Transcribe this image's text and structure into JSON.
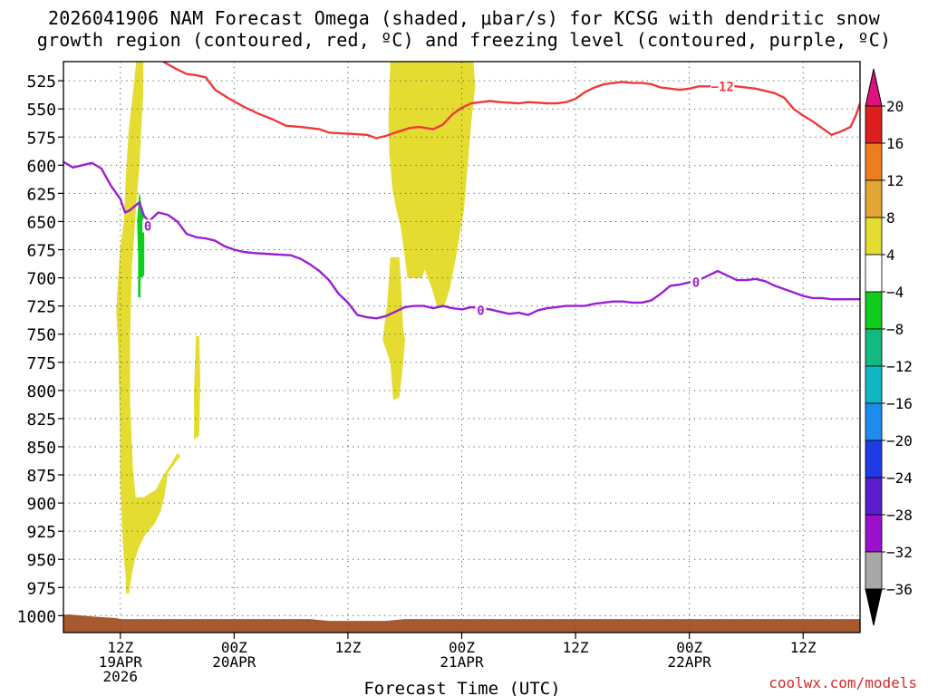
{
  "title": {
    "line1": "2026041906 NAM Forecast Omega (shaded, μbar/s) for KCSG with dendritic snow",
    "line2": "growth region (contoured, red, ºC) and freezing level (contoured, purple, ºC)"
  },
  "watermark": "coolwx.com/models",
  "chart_data": {
    "type": "contour-timeheight",
    "title": "2026041906 NAM Forecast Omega (shaded, μbar/s) for KCSG with dendritic snow growth region (contoured, red, ºC) and freezing level (contoured, purple, ºC)",
    "xlabel": "Forecast Time (UTC)",
    "ylabel": "",
    "x_range_hours": [
      0,
      84
    ],
    "y_range_mb": [
      508,
      1015
    ],
    "y_ticks": [
      525,
      550,
      575,
      600,
      625,
      650,
      675,
      700,
      725,
      750,
      775,
      800,
      825,
      850,
      875,
      900,
      925,
      950,
      975,
      1000
    ],
    "x_ticks": [
      {
        "hour": 6,
        "lines": [
          "12Z",
          "19APR",
          "2026"
        ]
      },
      {
        "hour": 18,
        "lines": [
          "00Z",
          "20APR"
        ]
      },
      {
        "hour": 30,
        "lines": [
          "12Z",
          ""
        ]
      },
      {
        "hour": 42,
        "lines": [
          "00Z",
          "21APR"
        ]
      },
      {
        "hour": 54,
        "lines": [
          "12Z",
          ""
        ]
      },
      {
        "hour": 66,
        "lines": [
          "00Z",
          "22APR"
        ]
      },
      {
        "hour": 78,
        "lines": [
          "12Z",
          ""
        ]
      }
    ],
    "colorbar": {
      "labels": [
        "20",
        "16",
        "12",
        "8",
        "4",
        "−4",
        "−8",
        "−12",
        "−16",
        "−20",
        "−24",
        "−28",
        "−32",
        "−36"
      ],
      "colors": [
        "#dc1e1e",
        "#ee7d22",
        "#e2a634",
        "#e5dc32",
        "#ffffff",
        "#0fcd1a",
        "#13b982",
        "#11b5c6",
        "#1e8cee",
        "#1e3ce6",
        "#5a1ecc",
        "#9a10cc",
        "#a8a8a8"
      ],
      "top_arrow_color": "#e0107e",
      "bottom_arrow_color": "#000000"
    },
    "dgz_contour": {
      "color": "#ee3a3a",
      "label": "−12",
      "label_point": [
        69.5,
        530
      ],
      "points": [
        [
          10.5,
          508
        ],
        [
          12,
          515
        ],
        [
          13,
          519
        ],
        [
          14,
          520
        ],
        [
          14.5,
          521
        ],
        [
          15,
          522
        ],
        [
          16,
          533
        ],
        [
          17.5,
          541
        ],
        [
          19,
          548
        ],
        [
          20.5,
          554
        ],
        [
          22,
          559
        ],
        [
          23.5,
          565
        ],
        [
          25,
          566
        ],
        [
          27,
          568
        ],
        [
          28,
          571
        ],
        [
          30,
          572
        ],
        [
          32,
          573
        ],
        [
          33,
          576
        ],
        [
          34,
          574
        ],
        [
          35,
          571
        ],
        [
          36.5,
          567
        ],
        [
          37.5,
          566
        ],
        [
          39,
          568
        ],
        [
          40,
          564
        ],
        [
          41,
          555
        ],
        [
          42,
          549
        ],
        [
          43,
          545
        ],
        [
          44,
          544
        ],
        [
          45,
          543
        ],
        [
          46,
          544
        ],
        [
          48,
          545
        ],
        [
          49,
          544
        ],
        [
          51,
          545
        ],
        [
          52,
          545
        ],
        [
          53,
          544
        ],
        [
          54,
          541
        ],
        [
          55,
          535
        ],
        [
          56,
          531
        ],
        [
          57,
          528
        ],
        [
          58,
          527
        ],
        [
          59,
          526
        ],
        [
          60,
          527
        ],
        [
          61,
          527
        ],
        [
          62,
          528
        ],
        [
          63,
          531
        ],
        [
          64,
          532
        ],
        [
          65,
          533
        ],
        [
          66,
          532
        ],
        [
          67,
          530
        ],
        [
          68,
          530
        ],
        [
          70,
          529
        ],
        [
          71,
          530
        ],
        [
          72,
          531
        ],
        [
          73,
          532
        ],
        [
          74,
          534
        ],
        [
          75,
          536
        ],
        [
          76,
          540
        ],
        [
          77,
          550
        ],
        [
          78,
          556
        ],
        [
          79,
          561
        ],
        [
          80,
          567
        ],
        [
          81,
          573
        ],
        [
          82,
          570
        ],
        [
          83,
          566
        ],
        [
          83.6,
          555
        ],
        [
          84,
          545
        ]
      ]
    },
    "freezing_contour": {
      "color": "#9b1fd1",
      "label": "0",
      "label_points": [
        [
          8.9,
          654
        ],
        [
          44,
          729
        ],
        [
          66.7,
          704
        ]
      ],
      "points": [
        [
          0,
          597
        ],
        [
          1,
          602
        ],
        [
          2,
          600
        ],
        [
          3,
          598
        ],
        [
          4,
          603
        ],
        [
          5,
          618
        ],
        [
          6,
          630
        ],
        [
          6.5,
          642
        ],
        [
          7,
          640
        ],
        [
          8,
          633
        ],
        [
          8.5,
          645
        ],
        [
          9,
          650
        ],
        [
          10,
          642
        ],
        [
          11,
          644
        ],
        [
          12,
          650
        ],
        [
          13,
          661
        ],
        [
          14,
          664
        ],
        [
          15,
          665
        ],
        [
          16,
          667
        ],
        [
          17,
          672
        ],
        [
          18,
          675
        ],
        [
          19,
          677
        ],
        [
          20,
          678
        ],
        [
          22,
          679
        ],
        [
          24,
          680
        ],
        [
          25,
          683
        ],
        [
          26,
          688
        ],
        [
          27,
          694
        ],
        [
          28,
          702
        ],
        [
          29,
          714
        ],
        [
          30,
          722
        ],
        [
          31,
          733
        ],
        [
          32,
          735
        ],
        [
          33,
          736
        ],
        [
          34,
          734
        ],
        [
          35,
          730
        ],
        [
          36,
          726
        ],
        [
          37,
          725
        ],
        [
          38,
          725
        ],
        [
          39,
          727
        ],
        [
          40,
          725
        ],
        [
          41,
          727
        ],
        [
          42,
          728
        ],
        [
          43,
          726
        ],
        [
          44,
          727
        ],
        [
          45,
          728
        ],
        [
          46,
          730
        ],
        [
          47,
          732
        ],
        [
          48,
          731
        ],
        [
          49,
          733
        ],
        [
          50,
          729
        ],
        [
          51,
          727
        ],
        [
          52,
          726
        ],
        [
          53,
          725
        ],
        [
          54,
          725
        ],
        [
          55,
          725
        ],
        [
          56,
          723
        ],
        [
          57,
          722
        ],
        [
          58,
          721
        ],
        [
          59,
          721
        ],
        [
          60,
          722
        ],
        [
          61,
          722
        ],
        [
          62,
          720
        ],
        [
          63,
          714
        ],
        [
          64,
          707
        ],
        [
          65,
          706
        ],
        [
          66,
          704
        ],
        [
          67,
          702
        ],
        [
          68,
          698
        ],
        [
          69,
          694
        ],
        [
          70,
          698
        ],
        [
          71,
          702
        ],
        [
          72,
          702
        ],
        [
          73,
          701
        ],
        [
          74,
          703
        ],
        [
          75,
          707
        ],
        [
          76,
          710
        ],
        [
          77,
          713
        ],
        [
          78,
          716
        ],
        [
          79,
          718
        ],
        [
          80,
          718
        ],
        [
          81,
          719
        ],
        [
          82,
          719
        ],
        [
          84,
          719
        ]
      ]
    },
    "omega_regions": [
      {
        "name": "lift-band-west",
        "color": "#e5dc32",
        "points": [
          [
            7.7,
            508
          ],
          [
            8.4,
            508
          ],
          [
            8.4,
            535
          ],
          [
            8.2,
            565
          ],
          [
            8.0,
            600
          ],
          [
            7.6,
            640
          ],
          [
            7.2,
            690
          ],
          [
            7.0,
            750
          ],
          [
            7.0,
            810
          ],
          [
            7.3,
            870
          ],
          [
            7.6,
            895
          ],
          [
            8.5,
            895
          ],
          [
            9.8,
            888
          ],
          [
            10.4,
            878
          ],
          [
            11.6,
            862
          ],
          [
            12.0,
            856
          ],
          [
            12.3,
            858
          ],
          [
            11.0,
            873
          ],
          [
            10.6,
            895
          ],
          [
            10.2,
            908
          ],
          [
            9.6,
            918
          ],
          [
            8.6,
            928
          ],
          [
            8.0,
            938
          ],
          [
            7.5,
            950
          ],
          [
            7.2,
            963
          ],
          [
            6.9,
            980
          ],
          [
            6.6,
            980
          ],
          [
            6.6,
            965
          ],
          [
            6.4,
            950
          ],
          [
            6.2,
            920
          ],
          [
            6.0,
            880
          ],
          [
            6.0,
            840
          ],
          [
            5.9,
            800
          ],
          [
            5.8,
            760
          ],
          [
            5.6,
            730
          ],
          [
            5.8,
            700
          ],
          [
            6.0,
            675
          ],
          [
            6.4,
            650
          ],
          [
            6.6,
            610
          ],
          [
            6.9,
            570
          ],
          [
            7.3,
            540
          ]
        ]
      },
      {
        "name": "lift-band-small",
        "color": "#e5dc32",
        "points": [
          [
            14.0,
            752
          ],
          [
            14.3,
            752
          ],
          [
            14.4,
            790
          ],
          [
            14.3,
            840
          ],
          [
            13.8,
            843
          ],
          [
            13.8,
            800
          ]
        ]
      },
      {
        "name": "lift-plume-main",
        "color": "#e5dc32",
        "points": [
          [
            34.5,
            508
          ],
          [
            43.2,
            508
          ],
          [
            43.4,
            530
          ],
          [
            43.0,
            560
          ],
          [
            42.6,
            600
          ],
          [
            42.2,
            640
          ],
          [
            41.4,
            680
          ],
          [
            40.7,
            710
          ],
          [
            40.1,
            726
          ],
          [
            39.5,
            727
          ],
          [
            38.9,
            710
          ],
          [
            38.1,
            692
          ],
          [
            37.8,
            700
          ],
          [
            36.3,
            700
          ],
          [
            36.0,
            680
          ],
          [
            35.6,
            655
          ],
          [
            35.1,
            638
          ],
          [
            34.7,
            620
          ],
          [
            34.4,
            590
          ],
          [
            34.3,
            560
          ]
        ]
      },
      {
        "name": "lift-blob-lower",
        "color": "#e5dc32",
        "points": [
          [
            34.5,
            682
          ],
          [
            35.4,
            682
          ],
          [
            35.6,
            710
          ],
          [
            35.8,
            745
          ],
          [
            36.0,
            755
          ],
          [
            35.8,
            775
          ],
          [
            35.4,
            806
          ],
          [
            34.8,
            808
          ],
          [
            34.5,
            775
          ],
          [
            33.7,
            755
          ],
          [
            34.2,
            720
          ]
        ]
      },
      {
        "name": "sink-strip-green",
        "color": "#0fcd1a",
        "points": [
          [
            8.0,
            625
          ],
          [
            8.4,
            645
          ],
          [
            8.5,
            665
          ],
          [
            8.5,
            698
          ],
          [
            8.1,
            700
          ],
          [
            8.1,
            717
          ],
          [
            7.9,
            717
          ],
          [
            7.9,
            680
          ],
          [
            7.8,
            650
          ]
        ]
      }
    ],
    "terrain_color": "#a65a2e",
    "surface_mb": 1003
  }
}
